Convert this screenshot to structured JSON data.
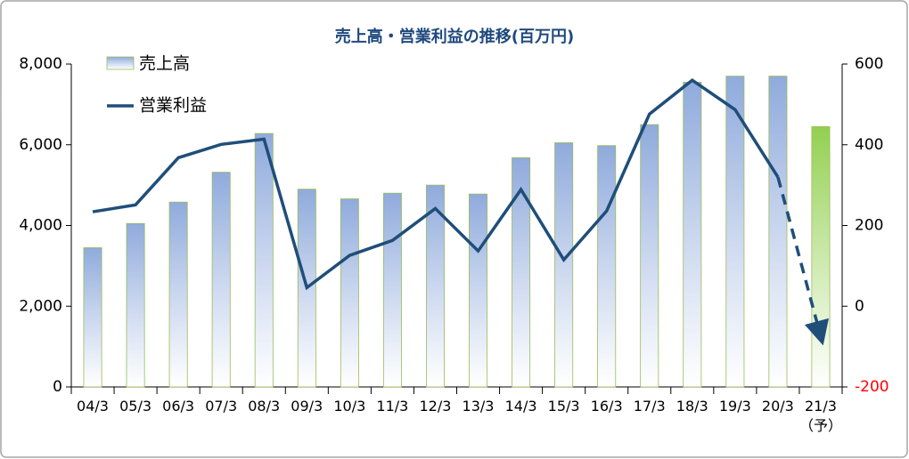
{
  "chart_data": {
    "type": "bar_line",
    "title": "売上高・営業利益の推移(百万円)",
    "categories": [
      "04/3",
      "05/3",
      "06/3",
      "07/3",
      "08/3",
      "09/3",
      "10/3",
      "11/3",
      "12/3",
      "13/3",
      "14/3",
      "15/3",
      "16/3",
      "17/3",
      "18/3",
      "19/3",
      "20/3",
      "21/3\n（予）"
    ],
    "series": [
      {
        "name": "売上高",
        "type": "bar",
        "color": "#8faadc",
        "forecast_color": "#92d050",
        "values": [
          3450,
          4050,
          4580,
          5320,
          6280,
          4900,
          4660,
          4800,
          5000,
          4780,
          5680,
          6050,
          5980,
          6500,
          7550,
          7700,
          7700,
          6450
        ]
      },
      {
        "name": "営業利益",
        "type": "line",
        "axis": "y2",
        "color": "#1f4e79",
        "dashed_last_segment": true,
        "values": [
          234,
          251,
          368,
          401,
          414,
          46,
          126,
          163,
          242,
          137,
          289,
          115,
          236,
          476,
          560,
          487,
          320,
          -75
        ]
      }
    ],
    "ylim": [
      0,
      8000
    ],
    "yticks": [
      {
        "value": 0,
        "label": "0"
      },
      {
        "value": 2000,
        "label": "2,000"
      },
      {
        "value": 4000,
        "label": "4,000"
      },
      {
        "value": 6000,
        "label": "6,000"
      },
      {
        "value": 8000,
        "label": "8,000"
      }
    ],
    "y2lim": [
      -200,
      600
    ],
    "y2ticks": [
      -200,
      0,
      200,
      400,
      600
    ],
    "y2tick_negative_color": "#ff0000",
    "legend": "upper left",
    "grid": false
  }
}
